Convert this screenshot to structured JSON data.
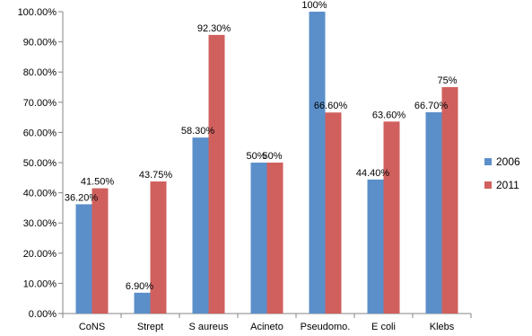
{
  "chart_data": {
    "type": "bar",
    "categories": [
      "CoNS",
      "Strept",
      "S aureus",
      "Acineto",
      "Pseudomo.",
      "E coli",
      "Klebs"
    ],
    "series": [
      {
        "name": "2006",
        "values": [
          36.2,
          6.9,
          58.3,
          50,
          100,
          44.4,
          66.7
        ],
        "labels": [
          "36.20%",
          "6.90%",
          "58.30%",
          "50%",
          "100%",
          "44.40%",
          "66.70%"
        ]
      },
      {
        "name": "2011",
        "values": [
          41.5,
          43.75,
          92.3,
          50,
          66.6,
          63.6,
          75
        ],
        "labels": [
          "41.50%",
          "43.75%",
          "92.30%",
          "50%",
          "66.60%",
          "63.60%",
          "75%"
        ]
      }
    ],
    "ylim": [
      0,
      100
    ],
    "yticks": [
      "0.00%",
      "10.00%",
      "20.00%",
      "30.00%",
      "40.00%",
      "50.00%",
      "60.00%",
      "70.00%",
      "80.00%",
      "90.00%",
      "100.00%"
    ],
    "grid": false,
    "legend_position": "right",
    "colors": {
      "2006": "#5b8fc9",
      "2011": "#d0605e"
    }
  }
}
